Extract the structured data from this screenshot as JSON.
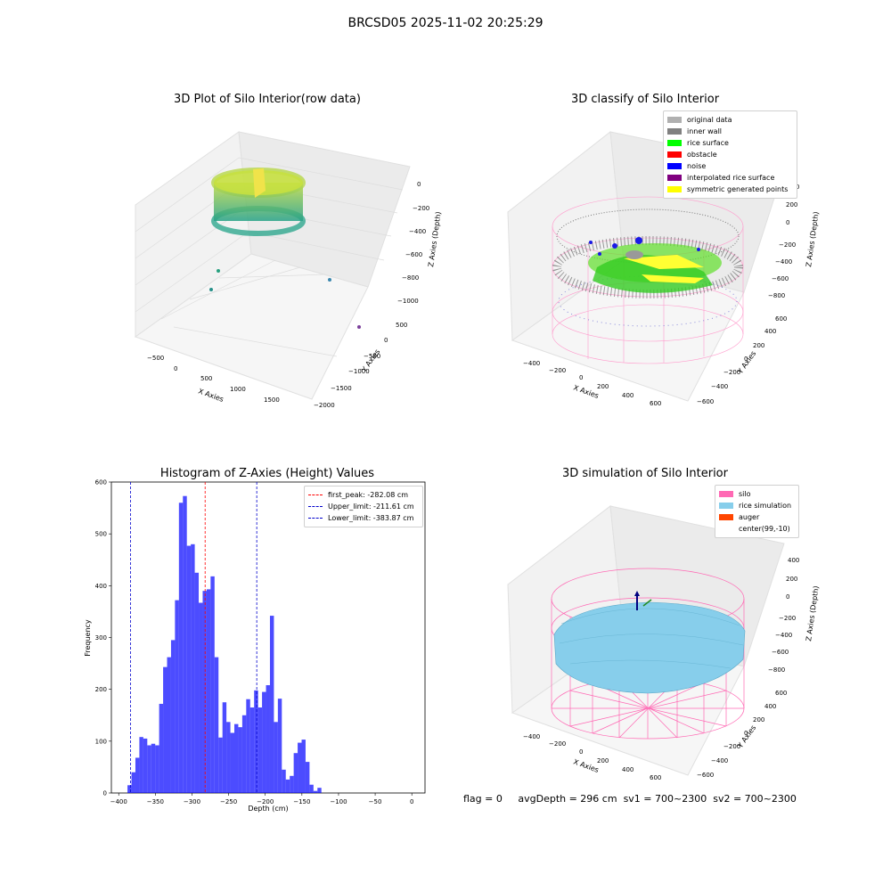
{
  "figure": {
    "title": "BRCSD05 2025-11-02 20:25:29",
    "footer": {
      "flag": "flag = 0",
      "avg_depth": "avgDepth = 296 cm",
      "sv1": "sv1 = 700~2300",
      "sv2": "sv2 = 700~2300"
    }
  },
  "panels": {
    "raw": {
      "title": "3D Plot of Silo Interior(row data)",
      "xlabel": "X Axies",
      "ylabel": "Y Axies",
      "zlabel": "Z Axies (Depth)",
      "x_ticks": [
        "−500",
        "0",
        "500",
        "1000",
        "1500"
      ],
      "y_ticks": [
        "500",
        "0",
        "−500",
        "−1000",
        "−1500",
        "−2000"
      ],
      "z_ticks": [
        "0",
        "−200",
        "−400",
        "−600",
        "−800",
        "−1000"
      ]
    },
    "classify": {
      "title": "3D classify of Silo Interior",
      "xlabel": "X Axies",
      "ylabel": "Y Axies",
      "zlabel": "Z Axies (Depth)",
      "x_ticks": [
        "−400",
        "−200",
        "0",
        "200",
        "400",
        "600"
      ],
      "y_ticks": [
        "600",
        "400",
        "200",
        "0",
        "−200",
        "−400",
        "−600"
      ],
      "z_ticks": [
        "400",
        "200",
        "0",
        "−200",
        "−400",
        "−600",
        "−800"
      ],
      "legend": [
        {
          "label": "original data",
          "color": "#b0b0b0"
        },
        {
          "label": "inner wall",
          "color": "#808080"
        },
        {
          "label": "rice surface",
          "color": "#00ff00"
        },
        {
          "label": "obstacle",
          "color": "#ff0000"
        },
        {
          "label": "noise",
          "color": "#0000ff"
        },
        {
          "label": "interpolated rice surface",
          "color": "#800080"
        },
        {
          "label": "symmetric generated points",
          "color": "#ffff00"
        }
      ]
    },
    "simulation": {
      "title": "3D simulation of Silo Interior",
      "xlabel": "X Axies",
      "ylabel": "Y Axies",
      "zlabel": "Z Axies (Depth)",
      "x_ticks": [
        "−400",
        "−200",
        "0",
        "200",
        "400",
        "600"
      ],
      "y_ticks": [
        "600",
        "400",
        "200",
        "0",
        "−200",
        "−400",
        "−600"
      ],
      "z_ticks": [
        "400",
        "200",
        "0",
        "−200",
        "−400",
        "−600",
        "−800"
      ],
      "legend": [
        {
          "label": "silo",
          "color": "#ff69b4"
        },
        {
          "label": "rice simulation",
          "color": "#87ceeb"
        },
        {
          "label": "auger",
          "color": "#ff4500"
        },
        {
          "label": "center(99,-10)",
          "color": "#ffffff"
        }
      ]
    }
  },
  "chart_data": {
    "type": "bar",
    "title": "Histogram of Z-Axies (Height) Values",
    "xlabel": "Depth (cm)",
    "ylabel": "Frequency",
    "xlim": [
      -410,
      18
    ],
    "ylim": [
      0,
      600
    ],
    "x_ticks": [
      -400,
      -350,
      -300,
      -250,
      -200,
      -150,
      -100,
      -50,
      0
    ],
    "y_ticks": [
      0,
      100,
      200,
      300,
      400,
      500,
      600
    ],
    "bar_color": "#0000ff",
    "bin_edges": [
      -388.0,
      -382.6,
      -377.2,
      -371.8,
      -366.4,
      -361.0,
      -355.6,
      -350.2,
      -344.8,
      -339.4,
      -334.0,
      -328.6,
      -323.2,
      -317.8,
      -312.4,
      -307.0,
      -301.6,
      -296.2,
      -290.8,
      -285.4,
      -280.0,
      -274.6,
      -269.2,
      -263.8,
      -258.4,
      -253.0,
      -247.6,
      -242.2,
      -236.8,
      -231.4,
      -226.0,
      -220.6,
      -215.2,
      -209.8,
      -204.4,
      -199.0,
      -193.6,
      -188.2,
      -182.8,
      -177.4,
      -172.0,
      -166.6,
      -161.2,
      -155.8,
      -150.4,
      -145.0,
      -139.6,
      -134.2,
      -128.8,
      -123.4,
      -118.0,
      -112.6,
      -107.2,
      -101.8,
      -96.4,
      -91.0,
      -85.6,
      -80.2,
      -74.8,
      -69.4,
      -64.0,
      -58.6,
      -53.2,
      -47.8,
      -42.4,
      -37.0,
      -31.6,
      -26.2,
      -20.8,
      -15.4,
      -10.0,
      -4.6,
      0.8
    ],
    "counts": [
      15,
      40,
      68,
      108,
      105,
      92,
      95,
      92,
      172,
      243,
      262,
      295,
      372,
      560,
      573,
      477,
      480,
      425,
      367,
      390,
      393,
      418,
      262,
      107,
      175,
      137,
      116,
      133,
      127,
      150,
      181,
      165,
      198,
      165,
      195,
      208,
      342,
      137,
      182,
      45,
      26,
      33,
      77,
      97,
      103,
      60,
      16,
      4,
      10,
      0,
      0,
      0,
      0,
      0,
      0,
      0,
      0,
      0,
      0,
      0,
      0,
      0,
      0,
      0,
      0,
      0,
      0,
      0,
      0,
      0,
      0,
      0
    ],
    "lines": [
      {
        "label": "first_peak: -282.08 cm",
        "value": -282.08,
        "color": "#ff0000"
      },
      {
        "label": "Upper_limit: -211.61 cm",
        "value": -211.61,
        "color": "#0000cc"
      },
      {
        "label": "Lower_limit: -383.87 cm",
        "value": -383.87,
        "color": "#0000cc"
      }
    ]
  }
}
